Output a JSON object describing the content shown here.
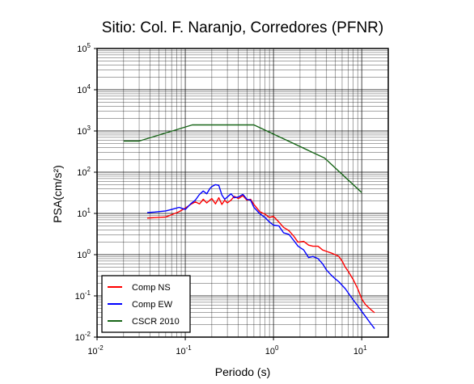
{
  "chart_data": {
    "type": "line",
    "title": "Sitio: Col. F. Naranjo, Corredores (PFNR)",
    "xlabel": "Periodo (s)",
    "ylabel": "PSA(cm/s²)",
    "x_scale": "log",
    "y_scale": "log",
    "xlim": [
      0.01,
      20
    ],
    "ylim": [
      0.01,
      100000
    ],
    "x_ticks": [
      {
        "base": "10",
        "exp": "-2"
      },
      {
        "base": "10",
        "exp": "-1"
      },
      {
        "base": "10",
        "exp": "0"
      },
      {
        "base": "10",
        "exp": "1"
      }
    ],
    "y_ticks": [
      {
        "base": "10",
        "exp": "-2"
      },
      {
        "base": "10",
        "exp": "-1"
      },
      {
        "base": "10",
        "exp": "0"
      },
      {
        "base": "10",
        "exp": "1"
      },
      {
        "base": "10",
        "exp": "2"
      },
      {
        "base": "10",
        "exp": "3"
      },
      {
        "base": "10",
        "exp": "4"
      },
      {
        "base": "10",
        "exp": "5"
      }
    ],
    "grid": true,
    "legend_position": "bottom-left",
    "series": [
      {
        "name": "Comp NS",
        "color": "#ff0000",
        "x": [
          0.037,
          0.045,
          0.06,
          0.07,
          0.085,
          0.1,
          0.115,
          0.13,
          0.145,
          0.16,
          0.175,
          0.19,
          0.2,
          0.22,
          0.24,
          0.26,
          0.28,
          0.3,
          0.33,
          0.36,
          0.4,
          0.45,
          0.5,
          0.55,
          0.6,
          0.7,
          0.8,
          0.9,
          1.0,
          1.15,
          1.3,
          1.5,
          1.7,
          1.9,
          2.2,
          2.5,
          2.8,
          3.2,
          3.6,
          4.0,
          4.5,
          5.0,
          5.5,
          6.0,
          6.5,
          7.0,
          8.0,
          9.0,
          10.0,
          11.0,
          12.5,
          14.0
        ],
        "y": [
          7.7,
          7.9,
          8.2,
          9.3,
          11,
          13.5,
          16.5,
          19,
          17,
          22,
          18,
          21,
          23,
          17,
          24,
          16.5,
          21,
          18,
          21,
          26,
          23,
          27,
          21,
          22,
          16.5,
          11,
          9.6,
          8,
          8.5,
          6.2,
          4.6,
          3.8,
          2.8,
          2.0,
          2.1,
          1.7,
          1.6,
          1.6,
          1.3,
          1.2,
          1.1,
          1.0,
          0.9,
          0.7,
          0.5,
          0.4,
          0.25,
          0.15,
          0.085,
          0.062,
          0.048,
          0.039
        ]
      },
      {
        "name": "Comp EW",
        "color": "#0000ff",
        "x": [
          0.037,
          0.045,
          0.06,
          0.07,
          0.085,
          0.1,
          0.115,
          0.13,
          0.145,
          0.16,
          0.175,
          0.19,
          0.2,
          0.22,
          0.24,
          0.26,
          0.28,
          0.3,
          0.33,
          0.36,
          0.4,
          0.45,
          0.5,
          0.55,
          0.6,
          0.7,
          0.8,
          0.9,
          1.0,
          1.15,
          1.3,
          1.5,
          1.7,
          1.9,
          2.2,
          2.5,
          2.8,
          3.2,
          3.6,
          4.0,
          4.5,
          5.0,
          5.5,
          6.0,
          6.5,
          7.0,
          8.0,
          9.0,
          10.0,
          11.0,
          12.5,
          14.0
        ],
        "y": [
          10.5,
          10.8,
          11.5,
          12.5,
          14,
          12.5,
          17,
          21,
          29,
          35,
          30,
          40,
          45,
          50,
          48,
          28,
          22,
          25,
          30,
          24,
          25,
          29,
          22,
          21,
          14,
          9.8,
          8.0,
          6.2,
          5.2,
          5.0,
          3.4,
          3.1,
          2.2,
          1.6,
          1.3,
          0.85,
          0.9,
          0.8,
          0.6,
          0.42,
          0.32,
          0.26,
          0.22,
          0.18,
          0.15,
          0.12,
          0.08,
          0.058,
          0.042,
          0.032,
          0.022,
          0.016
        ]
      },
      {
        "name": "CSCR 2010",
        "color": "#196619",
        "x": [
          0.02,
          0.03,
          0.12,
          0.6,
          3.8,
          10.0
        ],
        "y": [
          570,
          570,
          1400,
          1400,
          220,
          32
        ]
      }
    ]
  }
}
